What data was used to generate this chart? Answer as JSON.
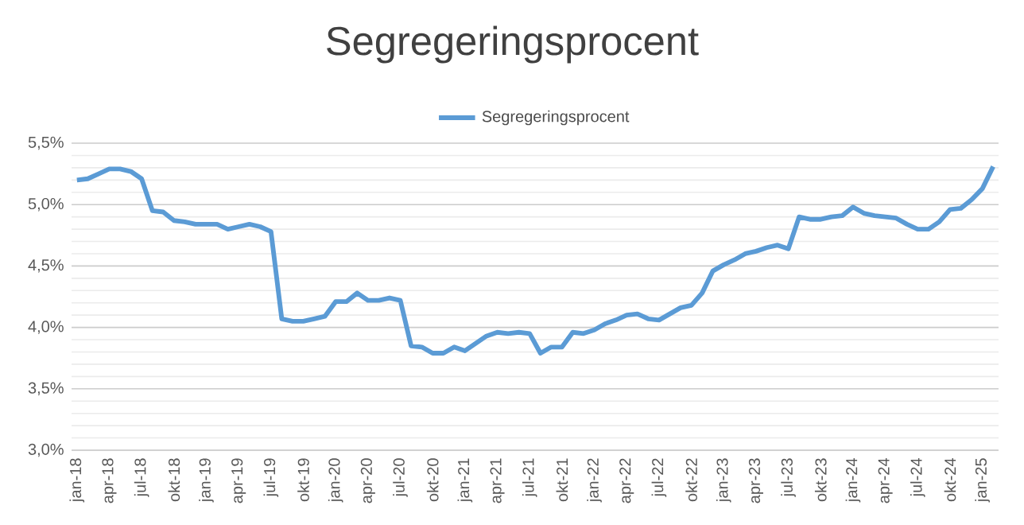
{
  "chart_data": {
    "type": "line",
    "title": "Segregeringsprocent",
    "categories": [
      "jan-18",
      null,
      null,
      "apr-18",
      null,
      null,
      "jul-18",
      null,
      null,
      "okt-18",
      null,
      null,
      "jan-19",
      null,
      null,
      "apr-19",
      null,
      null,
      "jul-19",
      null,
      null,
      "okt-19",
      null,
      null,
      "jan-20",
      null,
      null,
      "apr-20",
      null,
      null,
      "jul-20",
      null,
      null,
      "okt-20",
      null,
      null,
      "jan-21",
      null,
      null,
      "apr-21",
      null,
      null,
      "jul-21",
      null,
      null,
      "okt-21",
      null,
      null,
      "jan-22",
      null,
      null,
      "apr-22",
      null,
      null,
      "jul-22",
      null,
      null,
      "okt-22",
      null,
      null,
      "jan-23",
      null,
      null,
      "apr-23",
      null,
      null,
      "jul-23",
      null,
      null,
      "okt-23",
      null,
      null,
      "jan-24",
      null,
      null,
      "apr-24",
      null,
      null,
      "jul-24",
      null,
      null,
      "okt-24",
      null,
      null,
      "jan-25",
      null
    ],
    "series": [
      {
        "name": "Segregeringsprocent",
        "color": "#5b9bd5",
        "values": [
          5.2,
          5.21,
          5.25,
          5.29,
          5.29,
          5.27,
          5.21,
          4.95,
          4.94,
          4.87,
          4.86,
          4.84,
          4.84,
          4.84,
          4.8,
          4.82,
          4.84,
          4.82,
          4.78,
          4.07,
          4.05,
          4.05,
          4.07,
          4.09,
          4.21,
          4.21,
          4.28,
          4.22,
          4.22,
          4.24,
          4.22,
          3.85,
          3.84,
          3.79,
          3.79,
          3.84,
          3.81,
          3.87,
          3.93,
          3.96,
          3.95,
          3.96,
          3.95,
          3.79,
          3.84,
          3.84,
          3.96,
          3.95,
          3.98,
          4.03,
          4.06,
          4.1,
          4.11,
          4.07,
          4.06,
          4.11,
          4.16,
          4.18,
          4.28,
          4.46,
          4.51,
          4.55,
          4.6,
          4.62,
          4.65,
          4.67,
          4.64,
          4.9,
          4.88,
          4.88,
          4.9,
          4.91,
          4.98,
          4.93,
          4.91,
          4.9,
          4.89,
          4.84,
          4.8,
          4.8,
          4.86,
          4.96,
          4.97,
          5.04,
          5.13,
          5.31
        ]
      }
    ],
    "ylim": [
      3.0,
      5.5
    ],
    "yticks": [
      {
        "value": 3.0,
        "label": "3,0%"
      },
      {
        "value": 3.1,
        "label": null
      },
      {
        "value": 3.2,
        "label": null
      },
      {
        "value": 3.3,
        "label": null
      },
      {
        "value": 3.4,
        "label": null
      },
      {
        "value": 3.5,
        "label": "3,5%"
      },
      {
        "value": 3.6,
        "label": null
      },
      {
        "value": 3.7,
        "label": null
      },
      {
        "value": 3.8,
        "label": null
      },
      {
        "value": 3.9,
        "label": null
      },
      {
        "value": 4.0,
        "label": "4,0%"
      },
      {
        "value": 4.1,
        "label": null
      },
      {
        "value": 4.2,
        "label": null
      },
      {
        "value": 4.3,
        "label": null
      },
      {
        "value": 4.4,
        "label": null
      },
      {
        "value": 4.5,
        "label": "4,5%"
      },
      {
        "value": 4.6,
        "label": null
      },
      {
        "value": 4.7,
        "label": null
      },
      {
        "value": 4.8,
        "label": null
      },
      {
        "value": 4.9,
        "label": null
      },
      {
        "value": 5.0,
        "label": "5,0%"
      },
      {
        "value": 5.1,
        "label": null
      },
      {
        "value": 5.2,
        "label": null
      },
      {
        "value": 5.3,
        "label": null
      },
      {
        "value": 5.4,
        "label": null
      },
      {
        "value": 5.5,
        "label": "5,5%"
      }
    ],
    "grid": "y",
    "legend": "top",
    "marker": "none",
    "line_style": "solid"
  }
}
